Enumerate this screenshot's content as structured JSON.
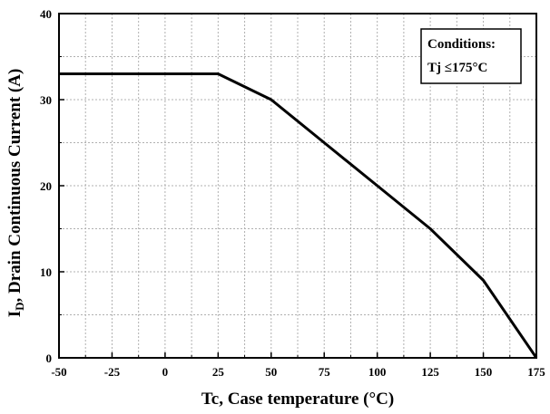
{
  "chart_data": {
    "type": "line",
    "xlabel": "Tc, Case temperature (°C)",
    "ylabel_main": "I",
    "ylabel_sub": "D",
    "ylabel_rest": ", Drain Continuous Current (A)",
    "xlim": [
      -50,
      175
    ],
    "ylim": [
      0,
      40
    ],
    "xticks": [
      -50,
      -25,
      0,
      25,
      50,
      75,
      100,
      125,
      150,
      175
    ],
    "yticks": [
      0,
      10,
      20,
      30,
      40
    ],
    "x_minor_step": 12.5,
    "y_minor_step": 5,
    "grid": true,
    "line_color": "#000000",
    "grid_color": "#b0b0b0",
    "series": [
      {
        "x": [
          -50,
          25,
          50,
          75,
          100,
          125,
          150,
          175
        ],
        "y": [
          33,
          33,
          30,
          25,
          20,
          15,
          9,
          0
        ]
      }
    ],
    "annotation": {
      "title": "Conditions:",
      "text": "Tj ≤175°C",
      "placement": "top-right"
    }
  }
}
